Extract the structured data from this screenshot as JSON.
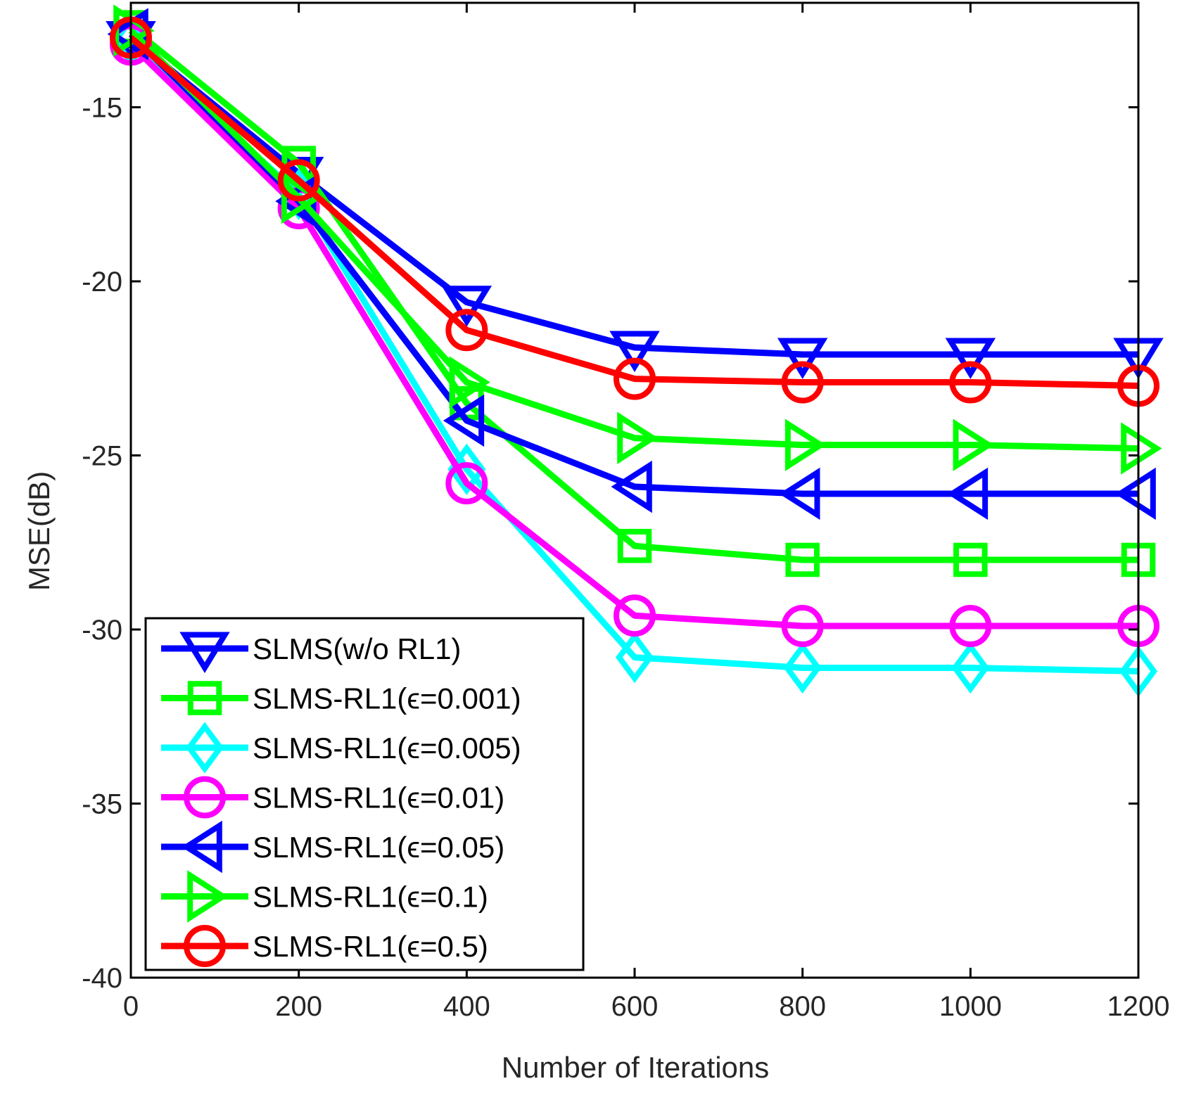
{
  "chart_data": {
    "type": "line",
    "title": "",
    "xlabel": "Number of Iterations",
    "ylabel": "MSE(dB)",
    "xlim": [
      0,
      1200
    ],
    "ylim": [
      -40,
      -12
    ],
    "x": [
      0,
      200,
      400,
      600,
      800,
      1000,
      1200
    ],
    "xticks": [
      "0",
      "200",
      "400",
      "600",
      "800",
      "1000",
      "1200"
    ],
    "yticks": [
      "-15",
      "-20",
      "-25",
      "-30",
      "-35",
      "-40"
    ],
    "ytick_values": [
      -15,
      -20,
      -25,
      -30,
      -35,
      -40
    ],
    "grid": false,
    "legend_position": "bottom-left",
    "series": [
      {
        "name": "SLMS(w/o RL1)",
        "color": "#0000ff",
        "marker": "triangle-down",
        "values": [
          -13.0,
          -16.9,
          -20.6,
          -21.9,
          -22.1,
          -22.1,
          -22.1
        ]
      },
      {
        "name": "SLMS-RL1(ϵ=0.001)",
        "color": "#00ff00",
        "marker": "square",
        "values": [
          -12.7,
          -16.6,
          -23.5,
          -27.6,
          -28.0,
          -28.0,
          -28.0
        ]
      },
      {
        "name": "SLMS-RL1(ϵ=0.005)",
        "color": "#00ffff",
        "marker": "diamond",
        "values": [
          -13.1,
          -17.5,
          -25.4,
          -30.8,
          -31.1,
          -31.1,
          -31.2
        ]
      },
      {
        "name": "SLMS-RL1(ϵ=0.01)",
        "color": "#ff00ff",
        "marker": "circle",
        "values": [
          -13.2,
          -17.9,
          -25.8,
          -29.6,
          -29.9,
          -29.9,
          -29.9
        ]
      },
      {
        "name": "SLMS-RL1(ϵ=0.05)",
        "color": "#0000ff",
        "marker": "triangle-left",
        "values": [
          -12.9,
          -17.7,
          -24.0,
          -25.9,
          -26.1,
          -26.1,
          -26.1
        ]
      },
      {
        "name": "SLMS-RL1(ϵ=0.1)",
        "color": "#00ff00",
        "marker": "triangle-right",
        "values": [
          -12.8,
          -17.6,
          -22.9,
          -24.5,
          -24.7,
          -24.7,
          -24.8
        ]
      },
      {
        "name": "SLMS-RL1(ϵ=0.5)",
        "color": "#ff0000",
        "marker": "circle",
        "values": [
          -13.0,
          -17.1,
          -21.4,
          -22.8,
          -22.9,
          -22.9,
          -23.0
        ]
      }
    ]
  }
}
